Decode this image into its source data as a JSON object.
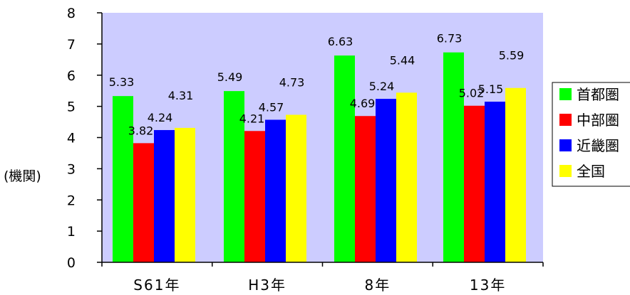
{
  "chart_data": {
    "type": "bar",
    "title": "",
    "xlabel": "",
    "ylabel": "(機関)",
    "ylim": [
      0,
      8
    ],
    "y_ticks": [
      0,
      1,
      2,
      3,
      4,
      5,
      6,
      7,
      8
    ],
    "categories": [
      "S61年",
      "H3年",
      "8年",
      "13年"
    ],
    "series": [
      {
        "name": "首都圏",
        "color": "#00ff00",
        "values": [
          5.33,
          5.49,
          6.63,
          6.73
        ]
      },
      {
        "name": "中部圏",
        "color": "#ff0000",
        "values": [
          3.82,
          4.21,
          4.69,
          5.02
        ]
      },
      {
        "name": "近畿圏",
        "color": "#0000ff",
        "values": [
          4.24,
          4.57,
          5.24,
          5.15
        ]
      },
      {
        "name": "全国",
        "color": "#ffff00",
        "values": [
          4.31,
          4.73,
          5.44,
          5.59
        ]
      }
    ],
    "plot_background": "#ccccff",
    "grid": false,
    "legend_position": "right"
  }
}
